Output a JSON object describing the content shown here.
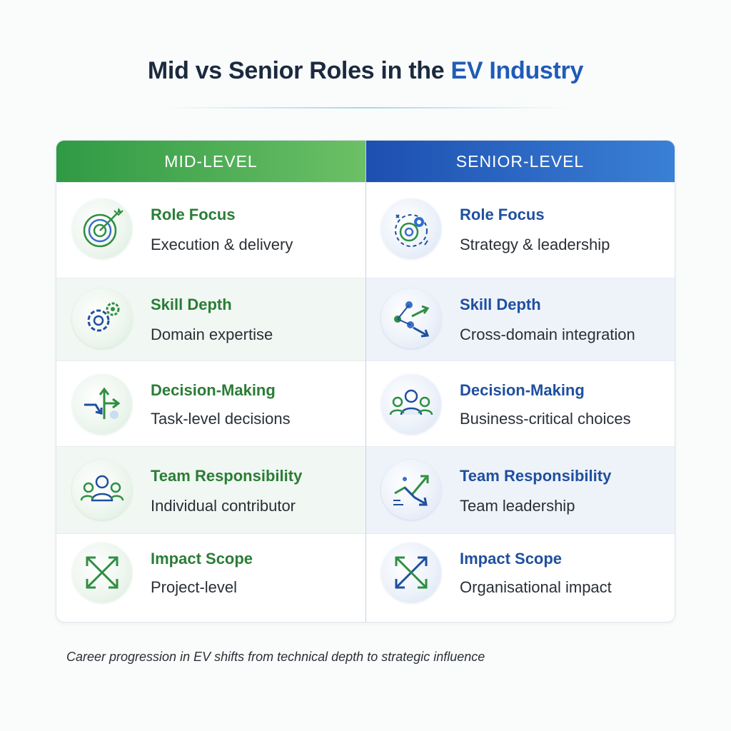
{
  "title": {
    "prefix": "Mid vs Senior Roles in the ",
    "accent": "EV Industry"
  },
  "columns": {
    "mid": "MID-LEVEL",
    "senior": "SENIOR-LEVEL"
  },
  "rows": [
    {
      "label": "Role Focus",
      "mid": "Execution & delivery",
      "senior": "Strategy & leadership",
      "mid_icon": "target-icon",
      "senior_icon": "strategy-gear-icon"
    },
    {
      "label": "Skill Depth",
      "mid": "Domain expertise",
      "senior": "Cross-domain integration",
      "mid_icon": "gears-icon",
      "senior_icon": "network-arrows-icon"
    },
    {
      "label": "Decision-Making",
      "mid": "Task-level decisions",
      "senior": "Business-critical choices",
      "mid_icon": "split-arrows-icon",
      "senior_icon": "group-icon"
    },
    {
      "label": "Team Responsibility",
      "mid": "Individual contributor",
      "senior": "Team leadership",
      "mid_icon": "people-icon",
      "senior_icon": "growth-arrows-icon"
    },
    {
      "label": "Impact Scope",
      "mid": "Project-level",
      "senior": "Organisational impact",
      "mid_icon": "cross-arrows-icon",
      "senior_icon": "expand-arrows-icon"
    }
  ],
  "footer": "Career progression in EV shifts from technical depth to strategic influence",
  "colors": {
    "mid_accent": "#2a7d36",
    "senior_accent": "#1f4f9e",
    "mid_header": "#2f9a44",
    "senior_header": "#1d4fb0"
  }
}
